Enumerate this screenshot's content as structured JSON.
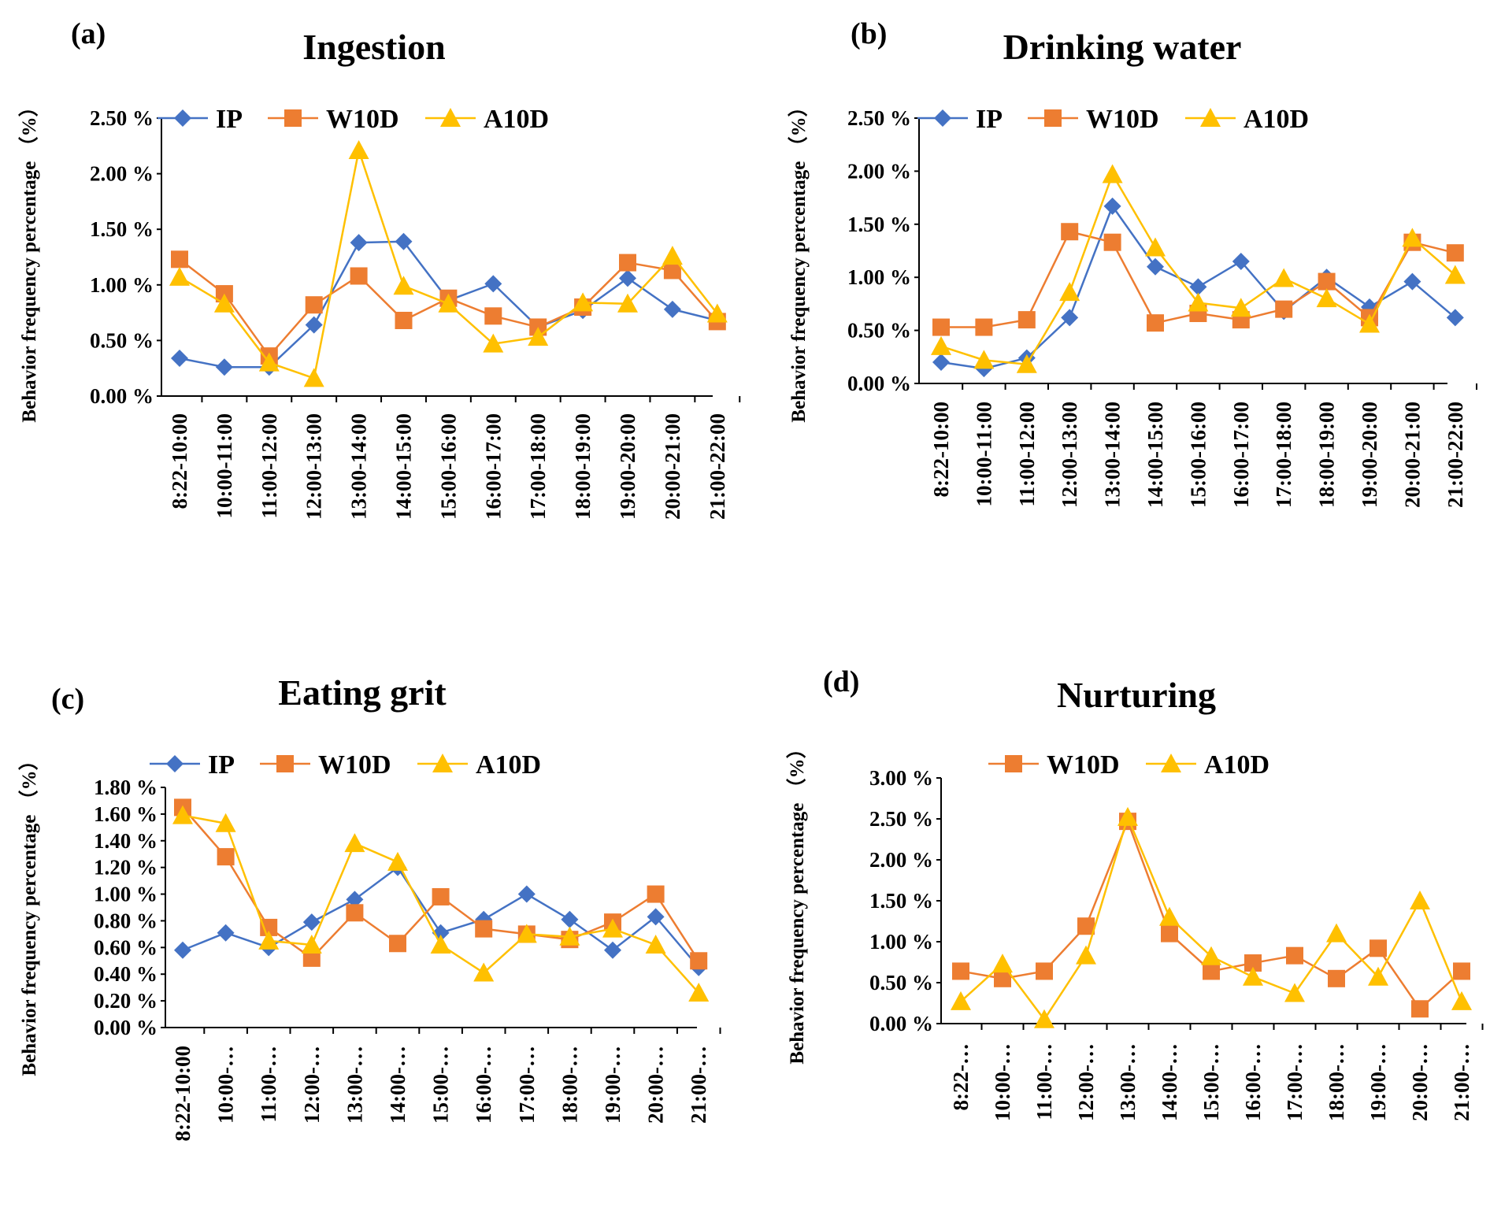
{
  "colors": {
    "IP": "#4472C4",
    "W10D": "#ED7D31",
    "A10D": "#FFC000"
  },
  "panels": [
    {
      "label": "(a)",
      "chart_data": {
        "type": "line",
        "title": "Ingestion",
        "ylabel": "Behavior frequency percentage （%）",
        "ylim": [
          0,
          2.5
        ],
        "yticks": [
          "0.00 %",
          "0.50 %",
          "1.00 %",
          "1.50 %",
          "2.00 %",
          "2.50 %"
        ],
        "categories": [
          "8:22-10:00",
          "10:00-11:00",
          "11:00-12:00",
          "12:00-13:00",
          "13:00-14:00",
          "14:00-15:00",
          "15:00-16:00",
          "16:00-17:00",
          "17:00-18:00",
          "18:00-19:00",
          "19:00-20:00",
          "20:00-21:00",
          "21:00-22:00"
        ],
        "legend": "top",
        "series": [
          {
            "name": "IP",
            "marker": "diamond",
            "values": [
              0.34,
              0.26,
              0.26,
              0.64,
              1.38,
              1.39,
              0.86,
              1.01,
              0.62,
              0.77,
              1.06,
              0.78,
              0.68
            ]
          },
          {
            "name": "W10D",
            "marker": "square",
            "values": [
              1.23,
              0.92,
              0.36,
              0.82,
              1.08,
              0.68,
              0.88,
              0.72,
              0.62,
              0.8,
              1.2,
              1.13,
              0.67
            ]
          },
          {
            "name": "A10D",
            "marker": "triangle",
            "values": [
              1.07,
              0.83,
              0.3,
              0.16,
              2.21,
              0.99,
              0.83,
              0.47,
              0.53,
              0.84,
              0.83,
              1.26,
              0.74
            ]
          }
        ]
      }
    },
    {
      "label": "(b)",
      "chart_data": {
        "type": "line",
        "title": "Drinking water",
        "ylabel": "Behavior frequency percentage （%）",
        "ylim": [
          0,
          2.5
        ],
        "yticks": [
          "0.00 %",
          "0.50 %",
          "1.00 %",
          "1.50 %",
          "2.00 %",
          "2.50 %"
        ],
        "categories": [
          "8:22-10:00",
          "10:00-11:00",
          "11:00-12:00",
          "12:00-13:00",
          "13:00-14:00",
          "14:00-15:00",
          "15:00-16:00",
          "16:00-17:00",
          "17:00-18:00",
          "18:00-19:00",
          "19:00-20:00",
          "20:00-21:00",
          "21:00-22:00"
        ],
        "legend": "top",
        "series": [
          {
            "name": "IP",
            "marker": "diamond",
            "values": [
              0.2,
              0.14,
              0.24,
              0.62,
              1.67,
              1.1,
              0.91,
              1.15,
              0.68,
              1.0,
              0.72,
              0.96,
              0.62
            ]
          },
          {
            "name": "W10D",
            "marker": "square",
            "values": [
              0.53,
              0.53,
              0.6,
              1.43,
              1.33,
              0.57,
              0.66,
              0.6,
              0.7,
              0.96,
              0.62,
              1.33,
              1.23
            ]
          },
          {
            "name": "A10D",
            "marker": "triangle",
            "values": [
              0.35,
              0.22,
              0.18,
              0.86,
              1.97,
              1.28,
              0.76,
              0.71,
              0.99,
              0.8,
              0.56,
              1.37,
              1.02
            ]
          }
        ]
      }
    },
    {
      "label": "(c)",
      "chart_data": {
        "type": "line",
        "title": "Eating grit",
        "ylabel": "Behavior frequency percentage （%）",
        "ylim": [
          0,
          1.8
        ],
        "yticks": [
          "0.00 %",
          "0.20 %",
          "0.40 %",
          "0.60 %",
          "0.80 %",
          "1.00 %",
          "1.20 %",
          "1.40 %",
          "1.60 %",
          "1.80 %"
        ],
        "categories": [
          "8:22-10:00",
          "10:00-…",
          "11:00-…",
          "12:00-…",
          "13:00-…",
          "14:00-…",
          "15:00-…",
          "16:00-…",
          "17:00-…",
          "18:00-…",
          "19:00-…",
          "20:00-…",
          "21:00-…"
        ],
        "legend": "top",
        "series": [
          {
            "name": "IP",
            "marker": "diamond",
            "values": [
              0.58,
              0.71,
              0.6,
              0.79,
              0.96,
              1.2,
              0.71,
              0.81,
              1.0,
              0.81,
              0.58,
              0.83,
              0.45
            ]
          },
          {
            "name": "W10D",
            "marker": "square",
            "values": [
              1.65,
              1.28,
              0.75,
              0.52,
              0.86,
              0.63,
              0.98,
              0.74,
              0.7,
              0.66,
              0.79,
              1.0,
              0.5
            ]
          },
          {
            "name": "A10D",
            "marker": "triangle",
            "values": [
              1.59,
              1.53,
              0.65,
              0.62,
              1.38,
              1.24,
              0.62,
              0.41,
              0.7,
              0.68,
              0.74,
              0.62,
              0.26
            ]
          }
        ]
      }
    },
    {
      "label": "(d)",
      "chart_data": {
        "type": "line",
        "title": "Nurturing",
        "ylabel": "Behavior frequency percentage （%）",
        "ylim": [
          0,
          3.0
        ],
        "yticks": [
          "0.00 %",
          "0.50 %",
          "1.00 %",
          "1.50 %",
          "2.00 %",
          "2.50 %",
          "3.00 %"
        ],
        "categories": [
          "8:22-…",
          "10:00-…",
          "11:00-…",
          "12:00-…",
          "13:00-…",
          "14:00-…",
          "15:00-…",
          "16:00-…",
          "17:00-…",
          "18:00-…",
          "19:00-…",
          "20:00-…",
          "21:00-…"
        ],
        "legend": "top",
        "series": [
          {
            "name": "W10D",
            "marker": "square",
            "values": [
              0.64,
              0.55,
              0.64,
              1.19,
              2.47,
              1.1,
              0.64,
              0.74,
              0.83,
              0.55,
              0.92,
              0.18,
              0.64
            ]
          },
          {
            "name": "A10D",
            "marker": "triangle",
            "values": [
              0.27,
              0.73,
              0.05,
              0.83,
              2.52,
              1.3,
              0.82,
              0.57,
              0.37,
              1.1,
              0.57,
              1.5,
              0.27
            ]
          }
        ]
      }
    }
  ]
}
